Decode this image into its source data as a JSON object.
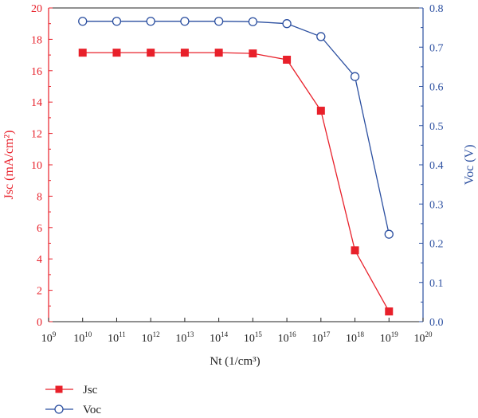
{
  "chart_data": {
    "type": "line",
    "xlabel": "Nt (1/cm³)",
    "xscale": "log",
    "xlim_exp": [
      9,
      20
    ],
    "x_tick_base": "10",
    "x_tick_exponents": [
      9,
      10,
      11,
      12,
      13,
      14,
      15,
      16,
      17,
      18,
      19,
      20
    ],
    "x_exponents": [
      10,
      11,
      12,
      13,
      14,
      15,
      16,
      17,
      18,
      19
    ],
    "axes": {
      "left": {
        "label": "Jsc (mA/cm²)",
        "ylim": [
          0,
          20
        ],
        "ticks": [
          "0",
          "2",
          "4",
          "6",
          "8",
          "10",
          "12",
          "14",
          "16",
          "18",
          "20"
        ],
        "color": "#e8202a"
      },
      "right": {
        "label": "Voc (V)",
        "ylim": [
          0,
          0.8
        ],
        "ticks": [
          "0.0",
          "0.1",
          "0.2",
          "0.3",
          "0.4",
          "0.5",
          "0.6",
          "0.7",
          "0.8"
        ],
        "color": "#2b4fa0"
      }
    },
    "series": [
      {
        "name": "Jsc",
        "axis": "left",
        "marker": "square-filled",
        "color": "#e8202a",
        "values": [
          17.15,
          17.15,
          17.15,
          17.15,
          17.15,
          17.1,
          16.7,
          13.45,
          4.55,
          0.65
        ]
      },
      {
        "name": "Voc",
        "axis": "right",
        "marker": "circle-open",
        "color": "#2b4fa0",
        "values": [
          0.766,
          0.766,
          0.766,
          0.766,
          0.766,
          0.765,
          0.76,
          0.727,
          0.625,
          0.223
        ]
      }
    ],
    "legend": "bottom-left",
    "grid": false
  }
}
